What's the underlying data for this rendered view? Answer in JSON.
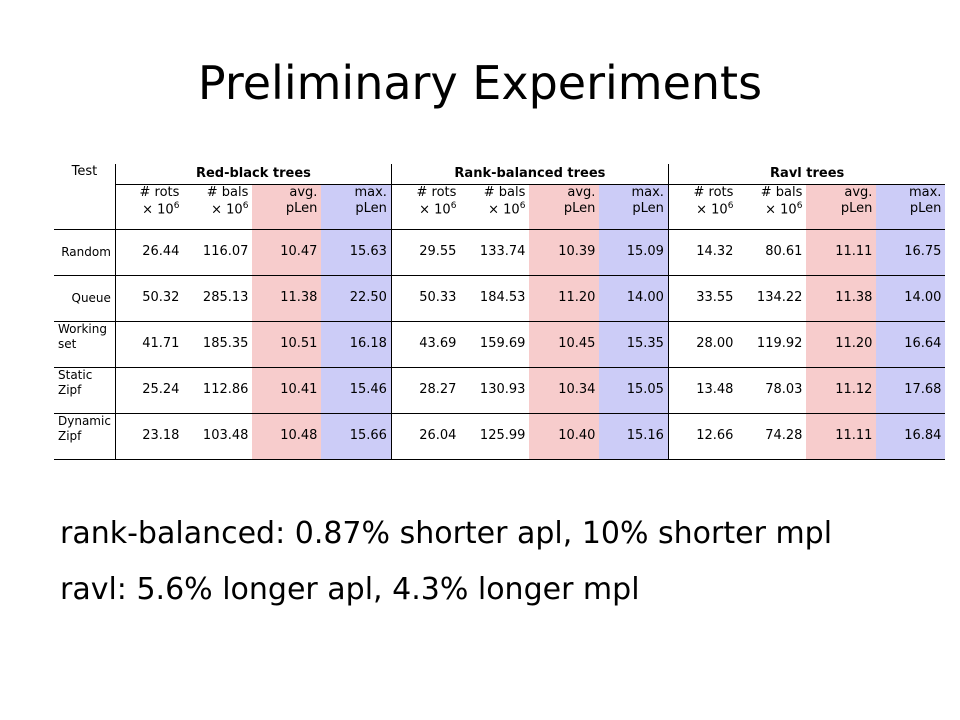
{
  "title": "Preliminary Experiments",
  "table": {
    "test_header": "Test",
    "groups": [
      "Red-black trees",
      "Rank-balanced trees",
      "Ravl trees"
    ],
    "sub_headers": {
      "rots_line1": "# rots",
      "bals_line1": "# bals",
      "mult_line2": "× 10",
      "exp": "6",
      "avg_line1": "avg.",
      "avg_line2": "pLen",
      "max_line1": "max.",
      "max_line2": "pLen"
    },
    "rows": [
      {
        "label": "Random",
        "values": [
          "26.44",
          "116.07",
          "10.47",
          "15.63",
          "29.55",
          "133.74",
          "10.39",
          "15.09",
          "14.32",
          "80.61",
          "11.11",
          "16.75"
        ]
      },
      {
        "label": "Queue",
        "values": [
          "50.32",
          "285.13",
          "11.38",
          "22.50",
          "50.33",
          "184.53",
          "11.20",
          "14.00",
          "33.55",
          "134.22",
          "11.38",
          "14.00"
        ]
      },
      {
        "label": "Working set",
        "values": [
          "41.71",
          "185.35",
          "10.51",
          "16.18",
          "43.69",
          "159.69",
          "10.45",
          "15.35",
          "28.00",
          "119.92",
          "11.20",
          "16.64"
        ]
      },
      {
        "label": "Static Zipf",
        "values": [
          "25.24",
          "112.86",
          "10.41",
          "15.46",
          "28.27",
          "130.93",
          "10.34",
          "15.05",
          "13.48",
          "78.03",
          "11.12",
          "17.68"
        ]
      },
      {
        "label": "Dynamic Zipf",
        "values": [
          "23.18",
          "103.48",
          "10.48",
          "15.66",
          "26.04",
          "125.99",
          "10.40",
          "15.16",
          "12.66",
          "74.28",
          "11.11",
          "16.84"
        ]
      }
    ]
  },
  "bullets": [
    "rank-balanced: 0.87% shorter apl, 10% shorter mpl",
    "ravl: 5.6% longer apl, 4.3% longer mpl"
  ],
  "colors": {
    "avg_cell": "#f7cccc",
    "max_cell": "#ccccf7"
  }
}
